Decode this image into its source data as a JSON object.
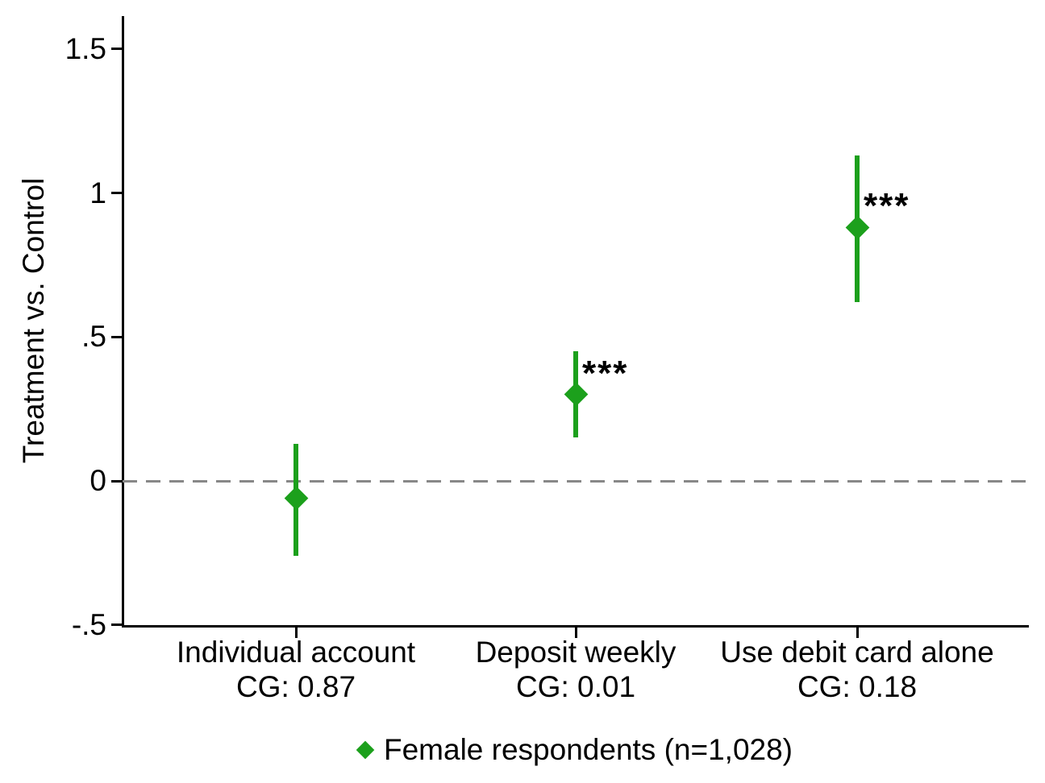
{
  "figure": {
    "background_color": "#ffffff",
    "accent_green": "#1ca01c",
    "zero_line_color": "#888888",
    "axis_color": "#000000"
  },
  "chart_data": {
    "type": "scatter",
    "subtype": "coefficient-plot-with-confidence-intervals",
    "title": "",
    "xlabel": "",
    "ylabel": "Treatment vs. Control",
    "ylim": [
      -0.5,
      1.5
    ],
    "yticks": [
      -0.5,
      0,
      0.5,
      1,
      1.5
    ],
    "ytick_labels": [
      "-.5",
      "0",
      ".5",
      "1",
      "1.5"
    ],
    "grid": false,
    "reference_line": {
      "y": 0,
      "style": "dashed",
      "color": "#888888"
    },
    "marker": "diamond",
    "marker_color": "#1ca01c",
    "categories": [
      {
        "label": "Individual account",
        "sublabel": "CG: 0.87",
        "estimate": -0.06,
        "ci_low": -0.26,
        "ci_high": 0.13,
        "significance": ""
      },
      {
        "label": "Deposit weekly",
        "sublabel": "CG: 0.01",
        "estimate": 0.3,
        "ci_low": 0.15,
        "ci_high": 0.45,
        "significance": "***"
      },
      {
        "label": "Use debit card alone",
        "sublabel": "CG: 0.18",
        "estimate": 0.88,
        "ci_low": 0.62,
        "ci_high": 1.13,
        "significance": "***"
      }
    ],
    "series": [
      {
        "name": "Female respondents (n=1,028)",
        "estimates": [
          -0.06,
          0.3,
          0.88
        ],
        "ci_low": [
          -0.26,
          0.15,
          0.62
        ],
        "ci_high": [
          0.13,
          0.45,
          1.13
        ]
      }
    ],
    "legend": {
      "position": "bottom-center",
      "marker": "diamond",
      "marker_color": "#1ca01c",
      "label": "Female respondents (n=1,028)"
    }
  }
}
